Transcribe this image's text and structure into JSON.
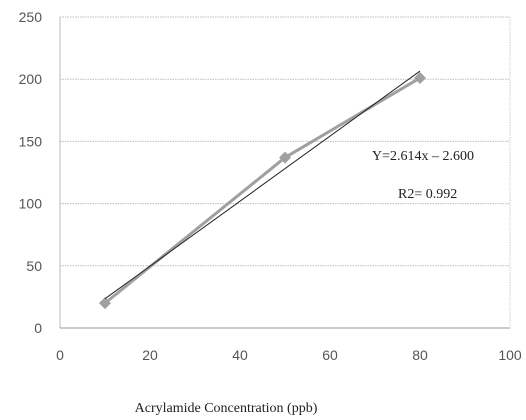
{
  "chart_data": {
    "type": "scatter",
    "title": "",
    "xlabel": "Acrylamide Concentration (ppb)",
    "ylabel": "",
    "xlim": [
      0,
      100
    ],
    "ylim": [
      0,
      250
    ],
    "x_ticks": [
      "0",
      "20",
      "40",
      "60",
      "80",
      "100"
    ],
    "y_ticks": [
      "0",
      "50",
      "100",
      "150",
      "200",
      "250"
    ],
    "grid": "horizontal",
    "legend": "none",
    "series": [
      {
        "x": [
          10,
          50,
          80
        ],
        "y": [
          20,
          137,
          201
        ],
        "color": "#a0a0a0",
        "marker": "diamond",
        "connected": true
      }
    ],
    "trendline": {
      "slope": 2.614,
      "intercept": -2.6,
      "x_range": [
        10,
        80
      ],
      "color": "#222222"
    },
    "annotations": [
      "Y=2.614x – 2.600",
      "R2= 0.992"
    ]
  }
}
